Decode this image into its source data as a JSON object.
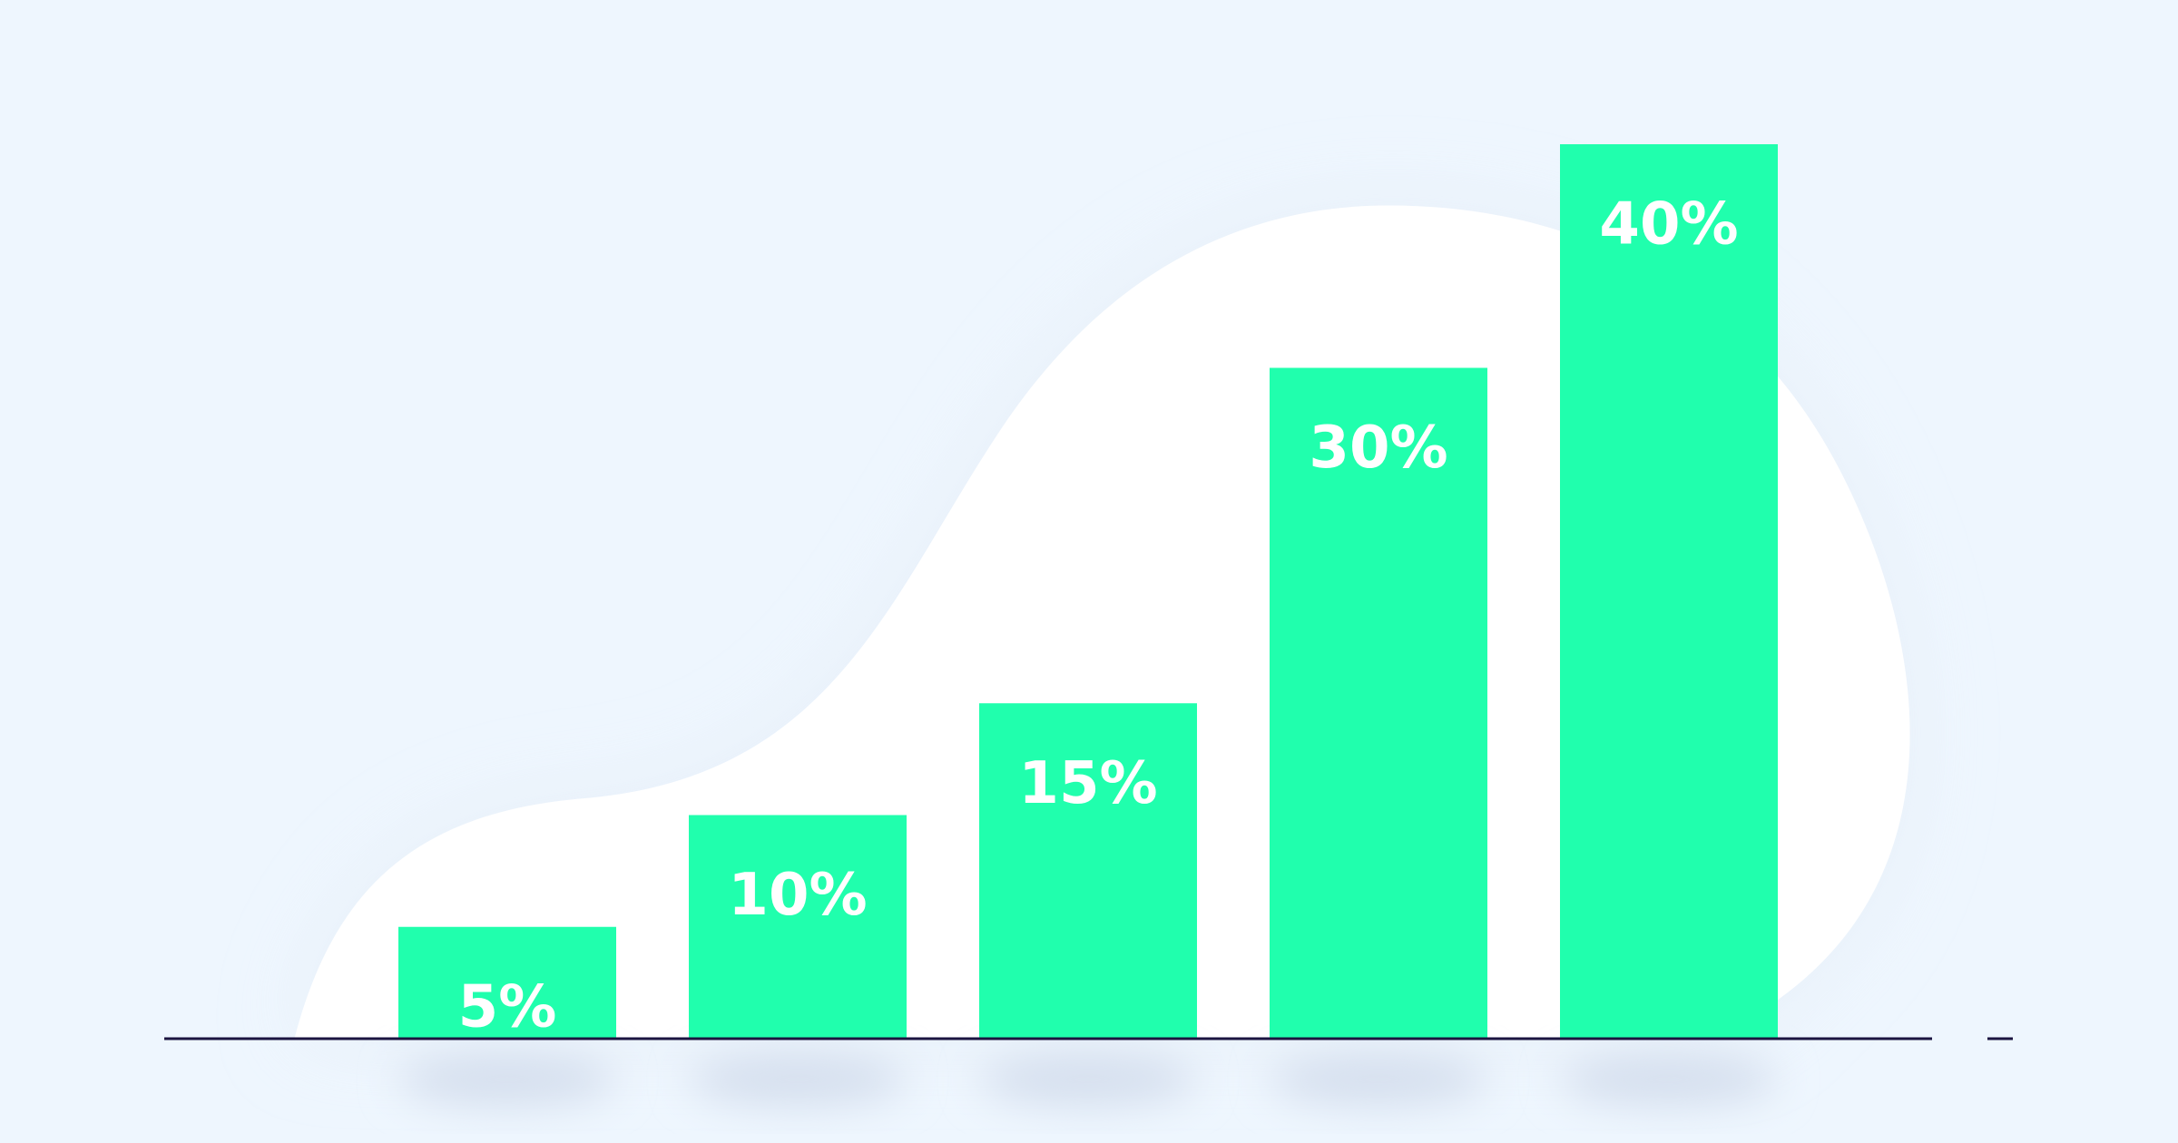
{
  "chart_data": {
    "type": "bar",
    "values": [
      5,
      10,
      15,
      30,
      40
    ],
    "value_labels": [
      "5%",
      "10%",
      "15%",
      "30%",
      "40%"
    ],
    "color": "#20ffad"
  }
}
